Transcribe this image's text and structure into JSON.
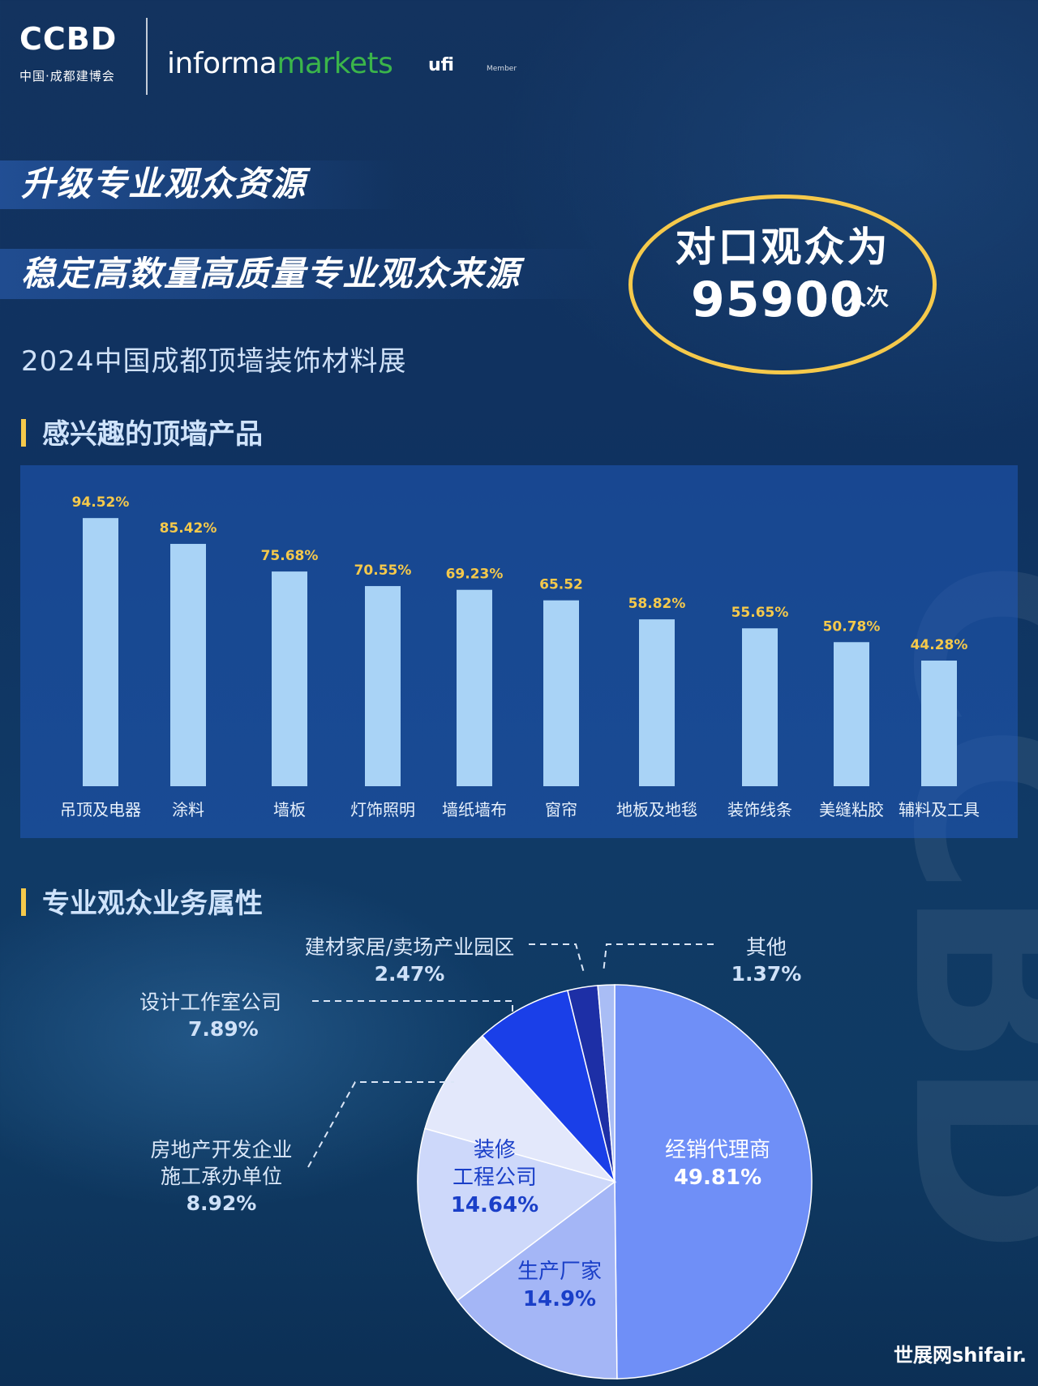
{
  "header": {
    "ccbd_logo_word": "CCBD",
    "ccbd_logo_cn": "中国·成都建博会",
    "informa_word": "informa",
    "markets_word": "markets",
    "ufi_word": "ufi",
    "ufi_member": "Member"
  },
  "headlines": {
    "line1": "升级专业观众资源",
    "line2": "稳定高数量高质量专业观众来源"
  },
  "highlight": {
    "title": "对口观众为",
    "number": "95900",
    "unit": "人次"
  },
  "subtitle": "2024中国成都顶墙装饰材料展",
  "section1_title": "感兴趣的顶墙产品",
  "section2_title": "专业观众业务属性",
  "watermark": "CCBD",
  "footer_mark": "世展网shifair.",
  "colors": {
    "accent_yellow": "#f5c94b",
    "bar_fill": "#a9d3f6",
    "panel_bg": "#205ab9"
  },
  "chart_data": [
    {
      "type": "bar",
      "categories": [
        "吊顶及电器",
        "涂料",
        "墙板",
        "灯饰照明",
        "墙纸墙布",
        "窗帘",
        "地板及地毯",
        "装饰线条",
        "美缝粘胶",
        "辅料及工具"
      ],
      "values": [
        94.52,
        85.42,
        75.68,
        70.55,
        69.23,
        65.52,
        58.82,
        55.65,
        50.78,
        44.28
      ],
      "value_labels": [
        "94.52%",
        "85.42%",
        "75.68%",
        "70.55%",
        "69.23%",
        "65.52",
        "58.82%",
        "55.65%",
        "50.78%",
        "44.28%"
      ],
      "ylim": [
        0,
        100
      ],
      "grid": false
    },
    {
      "type": "pie",
      "slices": [
        {
          "label": "经销代理商",
          "label_lines": [
            "经销代理商"
          ],
          "value": 49.81,
          "value_label": "49.81%",
          "color": "#6f8ff7"
        },
        {
          "label": "生产厂家",
          "label_lines": [
            "生产厂家"
          ],
          "value": 14.9,
          "value_label": "14.9%",
          "color": "#a4b6f6"
        },
        {
          "label": "装修工程公司",
          "label_lines": [
            "装修",
            "工程公司"
          ],
          "value": 14.64,
          "value_label": "14.64%",
          "color": "#cdd8fa"
        },
        {
          "label": "房地产开发企业施工承办单位",
          "label_lines": [
            "房地产开发企业",
            "施工承办单位"
          ],
          "value": 8.92,
          "value_label": "8.92%",
          "color": "#e3e8fb"
        },
        {
          "label": "设计工作室公司",
          "label_lines": [
            "设计工作室公司"
          ],
          "value": 7.89,
          "value_label": "7.89%",
          "color": "#1a3fe8"
        },
        {
          "label": "建材家居/卖场产业园区",
          "label_lines": [
            "建材家居/卖场产业园区"
          ],
          "value": 2.47,
          "value_label": "2.47%",
          "color": "#1d2fa6"
        },
        {
          "label": "其他",
          "label_lines": [
            "其他"
          ],
          "value": 1.37,
          "value_label": "1.37%",
          "color": "#a9bdf5"
        }
      ]
    }
  ]
}
